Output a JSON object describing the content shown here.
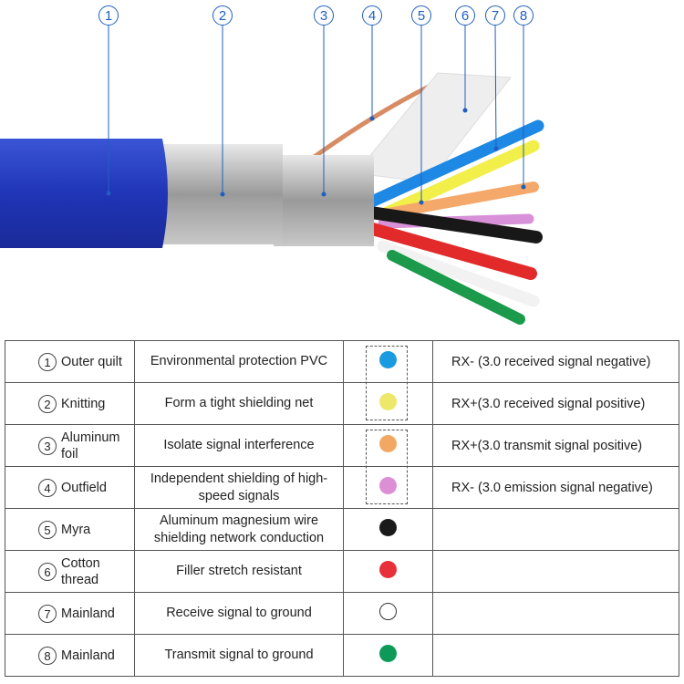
{
  "callouts": [
    "1",
    "2",
    "3",
    "4",
    "5",
    "6",
    "7",
    "8"
  ],
  "rows": [
    {
      "num": "1",
      "part": "Outer quilt",
      "description": "Environmental protection PVC",
      "color": "#1a9be0",
      "signal": "RX- (3.0 received signal negative)"
    },
    {
      "num": "2",
      "part": "Knitting",
      "description": "Form a tight shielding net",
      "color": "#ede86a",
      "signal": "RX+(3.0 received signal positive)"
    },
    {
      "num": "3",
      "part": "Aluminum foil",
      "description": "Isolate signal interference",
      "color": "#f2a863",
      "signal": "RX+(3.0 transmit signal positive)"
    },
    {
      "num": "4",
      "part": "Outfield",
      "description": "Independent shielding of high-speed signals",
      "color": "#dc8fd4",
      "signal": "RX- (3.0 emission signal negative)"
    },
    {
      "num": "5",
      "part": "Myra",
      "description": "Aluminum magnesium wire shielding network conduction",
      "color": "#1a1a1a",
      "signal": ""
    },
    {
      "num": "6",
      "part": "Cotton thread",
      "description": "Filler stretch resistant",
      "color": "#e8303a",
      "signal": ""
    },
    {
      "num": "7",
      "part": "Mainland",
      "description": "Receive signal to ground",
      "color": "#ffffff",
      "signal": ""
    },
    {
      "num": "8",
      "part": "Mainland",
      "description": "Transmit signal to ground",
      "color": "#0d9a58",
      "signal": ""
    }
  ],
  "colors": {
    "cable_jacket": "#2a3fbf",
    "callout": "#1f5fbf"
  }
}
